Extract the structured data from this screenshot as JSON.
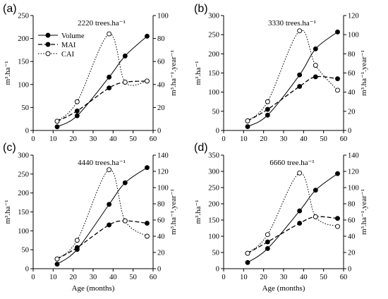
{
  "x_axis_label": "Age (months)",
  "left_axis_label": "m³.ha⁻¹",
  "right_axis_label": "m³.ha⁻¹.year⁻¹",
  "legend": {
    "volume": "Volume",
    "mai": "MAI",
    "cai": "CAI"
  },
  "chart_data": [
    {
      "type": "line",
      "panel": "(a)",
      "title": "2220 trees.ha⁻¹",
      "x": [
        12,
        22,
        38,
        46,
        57
      ],
      "xlim": [
        0,
        60
      ],
      "xticks": [
        0,
        10,
        20,
        30,
        40,
        50,
        60
      ],
      "ylim_left": [
        0,
        250
      ],
      "yticks_left": [
        0,
        50,
        100,
        150,
        200,
        250
      ],
      "ylim_right": [
        0,
        100
      ],
      "yticks_right": [
        0,
        20,
        40,
        60,
        80,
        100
      ],
      "series": [
        {
          "name": "Volume",
          "axis": "left",
          "values": [
            8,
            32,
            116,
            162,
            205
          ]
        },
        {
          "name": "MAI",
          "axis": "right",
          "values": [
            8,
            17,
            37,
            42,
            43
          ]
        },
        {
          "name": "CAI",
          "axis": "right",
          "values": [
            8,
            25,
            84,
            42,
            43
          ]
        }
      ],
      "legend_position": "top-left"
    },
    {
      "type": "line",
      "panel": "(b)",
      "title": "3330 trees.ha⁻¹",
      "x": [
        12,
        22,
        38,
        46,
        57
      ],
      "xlim": [
        0,
        60
      ],
      "xticks": [
        0,
        10,
        20,
        30,
        40,
        50,
        60
      ],
      "ylim_left": [
        0,
        300
      ],
      "yticks_left": [
        0,
        50,
        100,
        150,
        200,
        250,
        300
      ],
      "ylim_right": [
        0,
        120
      ],
      "yticks_right": [
        0,
        20,
        40,
        60,
        80,
        100,
        120
      ],
      "series": [
        {
          "name": "Volume",
          "axis": "left",
          "values": [
            10,
            40,
            145,
            213,
            257
          ]
        },
        {
          "name": "MAI",
          "axis": "right",
          "values": [
            10,
            22,
            46,
            56,
            54
          ]
        },
        {
          "name": "CAI",
          "axis": "right",
          "values": [
            10,
            30,
            104,
            68,
            42
          ]
        }
      ]
    },
    {
      "type": "line",
      "panel": "(c)",
      "title": "4440 trees.ha⁻¹",
      "x": [
        12,
        22,
        38,
        46,
        57
      ],
      "xlim": [
        0,
        60
      ],
      "xticks": [
        0,
        10,
        20,
        30,
        40,
        50,
        60
      ],
      "ylim_left": [
        0,
        300
      ],
      "yticks_left": [
        0,
        50,
        100,
        150,
        200,
        250,
        300
      ],
      "ylim_right": [
        0,
        140
      ],
      "yticks_right": [
        0,
        20,
        40,
        60,
        80,
        100,
        120,
        140
      ],
      "series": [
        {
          "name": "Volume",
          "axis": "left",
          "values": [
            12,
            51,
            170,
            227,
            267
          ]
        },
        {
          "name": "MAI",
          "axis": "right",
          "values": [
            12,
            26,
            54,
            59,
            56
          ]
        },
        {
          "name": "CAI",
          "axis": "right",
          "values": [
            12,
            35,
            122,
            59,
            40
          ]
        }
      ]
    },
    {
      "type": "line",
      "panel": "(d)",
      "title": "6660 tree.ha⁻¹",
      "x": [
        12,
        22,
        38,
        46,
        57
      ],
      "xlim": [
        0,
        60
      ],
      "xticks": [
        0,
        10,
        20,
        30,
        40,
        50,
        60
      ],
      "ylim_left": [
        0,
        350
      ],
      "yticks_left": [
        0,
        50,
        100,
        150,
        200,
        250,
        300,
        350
      ],
      "ylim_right": [
        0,
        140
      ],
      "yticks_right": [
        0,
        20,
        40,
        60,
        80,
        100,
        120,
        140
      ],
      "series": [
        {
          "name": "Volume",
          "axis": "left",
          "values": [
            19,
            62,
            178,
            242,
            293
          ]
        },
        {
          "name": "MAI",
          "axis": "right",
          "values": [
            19,
            33,
            56,
            64,
            62
          ]
        },
        {
          "name": "CAI",
          "axis": "right",
          "values": [
            19,
            42,
            118,
            64,
            52
          ]
        }
      ]
    }
  ]
}
